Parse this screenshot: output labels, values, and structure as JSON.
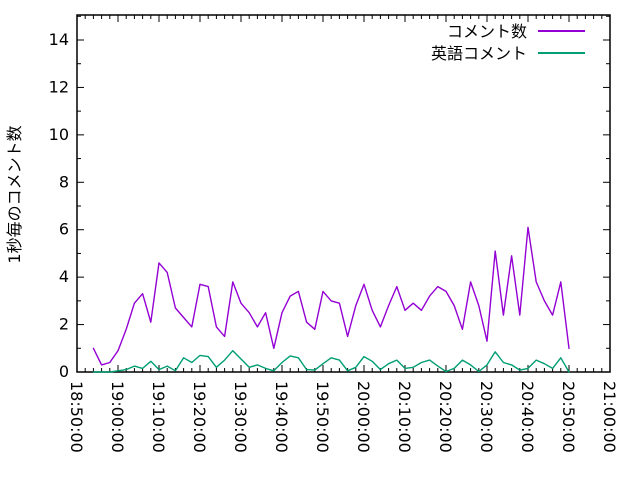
{
  "figure": {
    "background_color": "#ffffff",
    "border_color": "#000000",
    "text_color": "#000000"
  },
  "chart_data": {
    "type": "line",
    "title": "",
    "xlabel": "",
    "ylabel": "1秒毎のコメント数",
    "grid": false,
    "legend_position": "top-right-inside",
    "x_axis": {
      "kind": "time",
      "tick_labels": [
        "18:50:00",
        "19:00:00",
        "19:10:00",
        "19:20:00",
        "19:30:00",
        "19:40:00",
        "19:50:00",
        "20:00:00",
        "20:10:00",
        "20:20:00",
        "20:30:00",
        "20:40:00",
        "20:50:00",
        "21:00:00"
      ],
      "tick_minutes": [
        0,
        10,
        20,
        30,
        40,
        50,
        60,
        70,
        80,
        90,
        100,
        110,
        120,
        130
      ],
      "minutes_after": "18:50:00",
      "range_minutes": [
        0,
        130
      ],
      "minor_tick_interval_minutes": 2,
      "label_rotation_deg": 90
    },
    "y_axis": {
      "tick_labels": [
        "0",
        "2",
        "4",
        "6",
        "8",
        "10",
        "12",
        "14"
      ],
      "ticks": [
        0,
        2,
        4,
        6,
        8,
        10,
        12,
        14
      ],
      "range": [
        0,
        15.05
      ],
      "minor_tick_interval": 1
    },
    "series": [
      {
        "name": "コメント数",
        "color": "#9400d3",
        "x_minutes": [
          4,
          6,
          8,
          10,
          12,
          14,
          16,
          18,
          20,
          22,
          24,
          26,
          28,
          30,
          32,
          34,
          36,
          38,
          40,
          42,
          44,
          46,
          48,
          50,
          52,
          54,
          56,
          58,
          60,
          62,
          64,
          66,
          68,
          70,
          72,
          74,
          76,
          78,
          80,
          82,
          84,
          86,
          88,
          90,
          92,
          94,
          96,
          98,
          100,
          102,
          104,
          106,
          108,
          110,
          112,
          114,
          116,
          118,
          120
        ],
        "values": [
          1.0,
          0.3,
          0.4,
          0.9,
          1.8,
          2.9,
          3.3,
          2.1,
          4.6,
          4.2,
          2.7,
          2.3,
          1.9,
          3.7,
          3.6,
          1.9,
          1.5,
          3.8,
          2.9,
          2.5,
          1.9,
          2.5,
          1.0,
          2.5,
          3.2,
          3.4,
          2.1,
          1.8,
          3.4,
          3.0,
          2.9,
          1.5,
          2.8,
          3.7,
          2.6,
          1.9,
          2.8,
          3.6,
          2.6,
          2.9,
          2.6,
          3.2,
          3.6,
          3.4,
          2.8,
          1.8,
          3.8,
          2.8,
          1.3,
          5.1,
          2.4,
          4.9,
          2.4,
          6.1,
          3.8,
          3.0,
          2.4,
          3.8,
          1.0
        ]
      },
      {
        "name": "英語コメント",
        "color": "#009e73",
        "x_minutes": [
          4,
          6,
          8,
          10,
          12,
          14,
          16,
          18,
          20,
          22,
          24,
          26,
          28,
          30,
          32,
          34,
          36,
          38,
          40,
          42,
          44,
          46,
          48,
          50,
          52,
          54,
          56,
          58,
          60,
          62,
          64,
          66,
          68,
          70,
          72,
          74,
          76,
          78,
          80,
          82,
          84,
          86,
          88,
          90,
          92,
          94,
          96,
          98,
          100,
          102,
          104,
          106,
          108,
          110,
          112,
          114,
          116,
          118,
          120
        ],
        "values": [
          0.0,
          0.0,
          0.0,
          0.05,
          0.1,
          0.25,
          0.15,
          0.45,
          0.1,
          0.25,
          0.05,
          0.6,
          0.4,
          0.7,
          0.65,
          0.2,
          0.5,
          0.9,
          0.55,
          0.2,
          0.3,
          0.15,
          0.05,
          0.4,
          0.68,
          0.6,
          0.1,
          0.08,
          0.35,
          0.6,
          0.5,
          0.05,
          0.2,
          0.65,
          0.45,
          0.1,
          0.35,
          0.5,
          0.15,
          0.2,
          0.4,
          0.5,
          0.25,
          0.02,
          0.15,
          0.5,
          0.3,
          0.02,
          0.3,
          0.85,
          0.4,
          0.3,
          0.08,
          0.15,
          0.5,
          0.35,
          0.15,
          0.6,
          0.0
        ]
      }
    ]
  }
}
